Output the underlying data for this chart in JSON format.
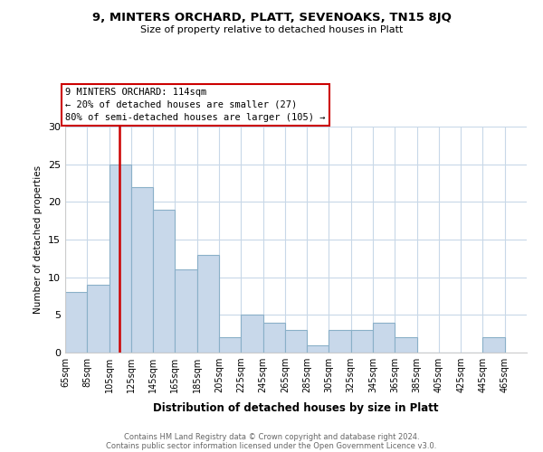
{
  "title1": "9, MINTERS ORCHARD, PLATT, SEVENOAKS, TN15 8JQ",
  "title2": "Size of property relative to detached houses in Platt",
  "xlabel": "Distribution of detached houses by size in Platt",
  "ylabel": "Number of detached properties",
  "bar_color": "#c8d8ea",
  "bar_edge_color": "#8ab0c8",
  "vline_x": 114,
  "vline_color": "#cc0000",
  "annotation_title": "9 MINTERS ORCHARD: 114sqm",
  "annotation_line1": "← 20% of detached houses are smaller (27)",
  "annotation_line2": "80% of semi-detached houses are larger (105) →",
  "bins": [
    65,
    85,
    105,
    125,
    145,
    165,
    185,
    205,
    225,
    245,
    265,
    285,
    305,
    325,
    345,
    365,
    385,
    405,
    425,
    445,
    465
  ],
  "counts": [
    8,
    9,
    25,
    22,
    19,
    11,
    13,
    2,
    5,
    4,
    3,
    1,
    3,
    3,
    4,
    2,
    0,
    0,
    0,
    2
  ],
  "ylim": [
    0,
    30
  ],
  "yticks": [
    0,
    5,
    10,
    15,
    20,
    25,
    30
  ],
  "footer1": "Contains HM Land Registry data © Crown copyright and database right 2024.",
  "footer2": "Contains public sector information licensed under the Open Government Licence v3.0.",
  "background_color": "#ffffff",
  "plot_background": "#ffffff",
  "grid_color": "#c8d8e8"
}
